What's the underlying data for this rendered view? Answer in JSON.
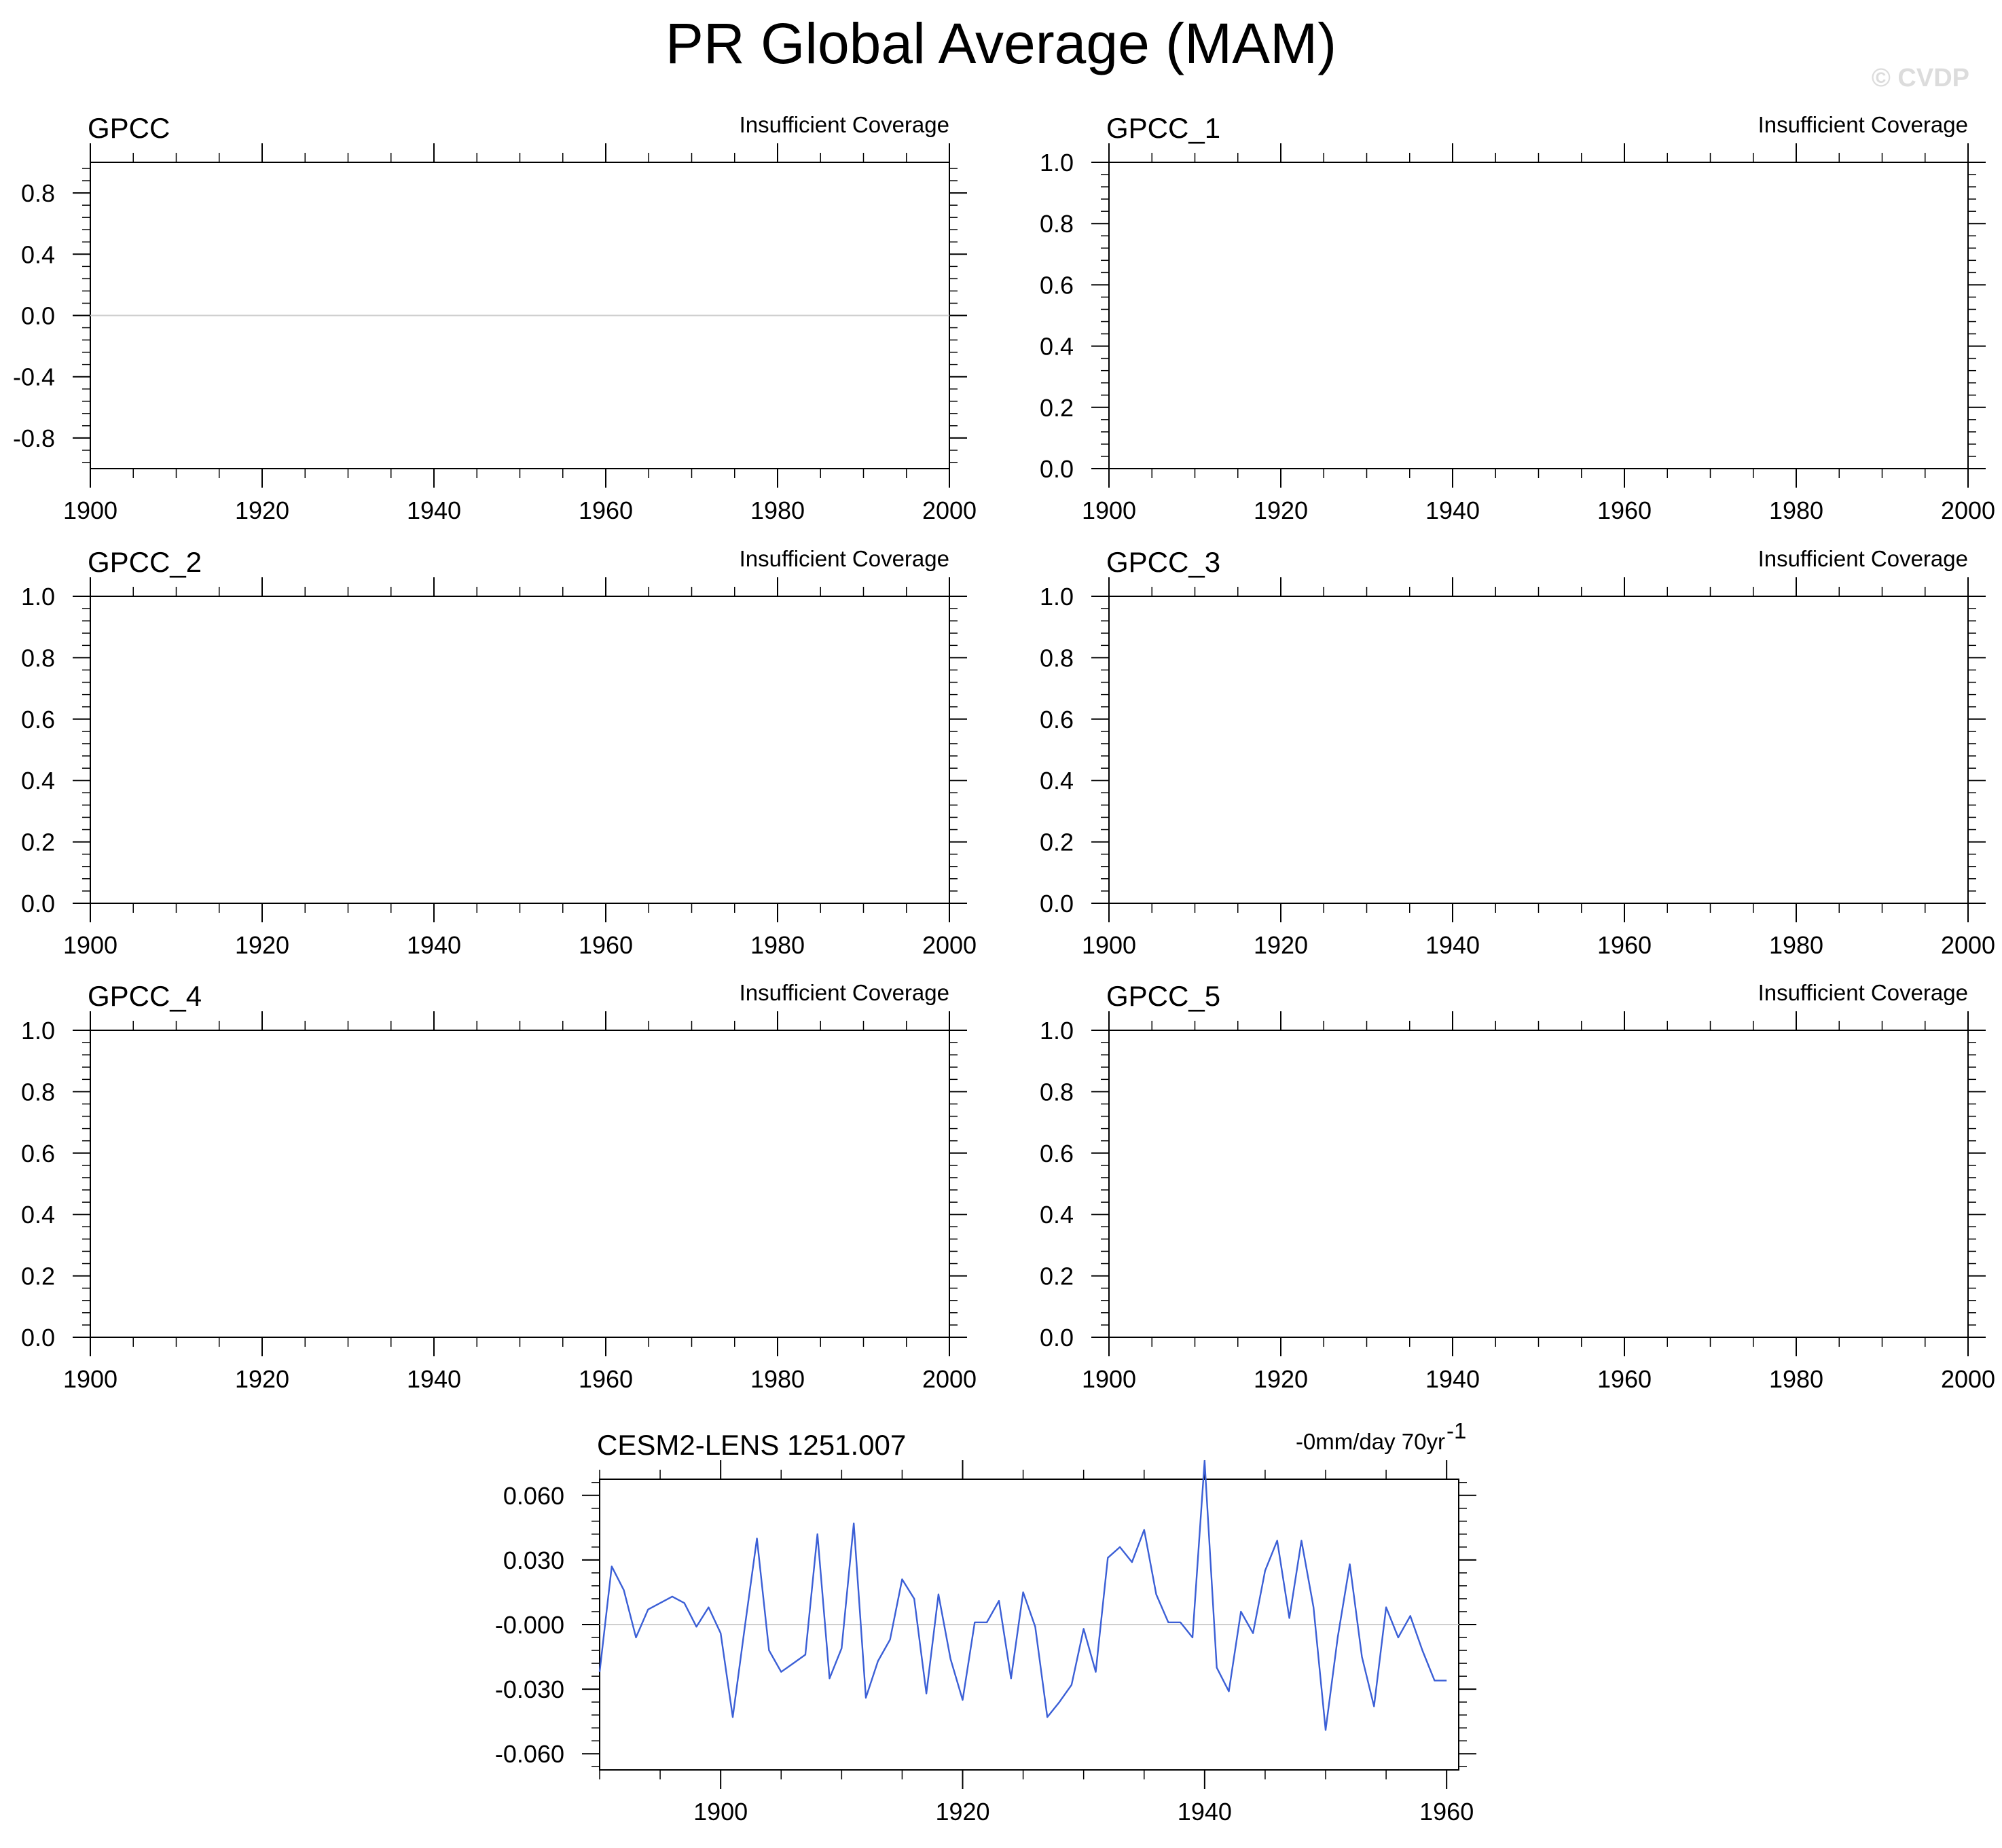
{
  "figure": {
    "title": "PR Global Average (MAM)",
    "watermark": "© CVDP"
  },
  "colors": {
    "series_line": "#3b5fd6",
    "zero_line": "#cfcfcf",
    "axis": "#000000"
  },
  "chart_data": [
    {
      "type": "line",
      "title": "GPCC",
      "note": "Insufficient Coverage",
      "xlim": [
        1900,
        2000
      ],
      "ylim": [
        -1.0,
        1.0
      ],
      "xticks": [
        1900,
        1920,
        1940,
        1960,
        1980,
        2000
      ],
      "yticks": [
        0.8,
        0.4,
        0.0,
        -0.4,
        -0.8
      ],
      "ytick_labels": [
        "0.8",
        "0.4",
        "0.0",
        "-0.4",
        "-0.8"
      ],
      "reference_line": 0.0,
      "series": []
    },
    {
      "type": "line",
      "title": "GPCC_1",
      "note": "Insufficient Coverage",
      "xlim": [
        1900,
        2000
      ],
      "ylim": [
        0.0,
        1.0
      ],
      "xticks": [
        1900,
        1920,
        1940,
        1960,
        1980,
        2000
      ],
      "yticks": [
        1.0,
        0.8,
        0.6,
        0.4,
        0.2,
        0.0
      ],
      "ytick_labels": [
        "1.0",
        "0.8",
        "0.6",
        "0.4",
        "0.2",
        "0.0"
      ],
      "series": []
    },
    {
      "type": "line",
      "title": "GPCC_2",
      "note": "Insufficient Coverage",
      "xlim": [
        1900,
        2000
      ],
      "ylim": [
        0.0,
        1.0
      ],
      "xticks": [
        1900,
        1920,
        1940,
        1960,
        1980,
        2000
      ],
      "yticks": [
        1.0,
        0.8,
        0.6,
        0.4,
        0.2,
        0.0
      ],
      "ytick_labels": [
        "1.0",
        "0.8",
        "0.6",
        "0.4",
        "0.2",
        "0.0"
      ],
      "series": []
    },
    {
      "type": "line",
      "title": "GPCC_3",
      "note": "Insufficient Coverage",
      "xlim": [
        1900,
        2000
      ],
      "ylim": [
        0.0,
        1.0
      ],
      "xticks": [
        1900,
        1920,
        1940,
        1960,
        1980,
        2000
      ],
      "yticks": [
        1.0,
        0.8,
        0.6,
        0.4,
        0.2,
        0.0
      ],
      "ytick_labels": [
        "1.0",
        "0.8",
        "0.6",
        "0.4",
        "0.2",
        "0.0"
      ],
      "series": []
    },
    {
      "type": "line",
      "title": "GPCC_4",
      "note": "Insufficient Coverage",
      "xlim": [
        1900,
        2000
      ],
      "ylim": [
        0.0,
        1.0
      ],
      "xticks": [
        1900,
        1920,
        1940,
        1960,
        1980,
        2000
      ],
      "yticks": [
        1.0,
        0.8,
        0.6,
        0.4,
        0.2,
        0.0
      ],
      "ytick_labels": [
        "1.0",
        "0.8",
        "0.6",
        "0.4",
        "0.2",
        "0.0"
      ],
      "series": []
    },
    {
      "type": "line",
      "title": "GPCC_5",
      "note": "Insufficient Coverage",
      "xlim": [
        1900,
        2000
      ],
      "ylim": [
        0.0,
        1.0
      ],
      "xticks": [
        1900,
        1920,
        1940,
        1960,
        1980,
        2000
      ],
      "yticks": [
        1.0,
        0.8,
        0.6,
        0.4,
        0.2,
        0.0
      ],
      "ytick_labels": [
        "1.0",
        "0.8",
        "0.6",
        "0.4",
        "0.2",
        "0.0"
      ],
      "series": []
    },
    {
      "type": "line",
      "title": "CESM2-LENS 1251.007",
      "note": "-0mm/day 70yr",
      "note_superscript": "-1",
      "xlim": [
        1890,
        1961
      ],
      "ylim": [
        -0.0675,
        0.0675
      ],
      "xticks": [
        1900,
        1920,
        1940,
        1960
      ],
      "yticks": [
        0.06,
        0.03,
        0.0,
        -0.03,
        -0.06
      ],
      "ytick_labels": [
        "0.060",
        "0.030",
        "-0.000",
        "-0.030",
        "-0.060"
      ],
      "reference_line": 0.0,
      "series": [
        {
          "x": [
            1890,
            1891,
            1892,
            1893,
            1894,
            1895,
            1896,
            1897,
            1898,
            1899,
            1900,
            1901,
            1902,
            1903,
            1904,
            1905,
            1906,
            1907,
            1908,
            1909,
            1910,
            1911,
            1912,
            1913,
            1914,
            1915,
            1916,
            1917,
            1918,
            1919,
            1920,
            1921,
            1922,
            1923,
            1924,
            1925,
            1926,
            1927,
            1928,
            1929,
            1930,
            1931,
            1932,
            1933,
            1934,
            1935,
            1936,
            1937,
            1938,
            1939,
            1940,
            1941,
            1942,
            1943,
            1944,
            1945,
            1946,
            1947,
            1948,
            1949,
            1950,
            1951,
            1952,
            1953,
            1954,
            1955,
            1956,
            1957,
            1958,
            1959,
            1960
          ],
          "values": [
            -0.022,
            0.027,
            0.016,
            -0.006,
            0.007,
            0.01,
            0.013,
            0.01,
            -0.001,
            0.008,
            -0.004,
            -0.043,
            -0.001,
            0.04,
            -0.012,
            -0.022,
            -0.018,
            -0.014,
            0.042,
            -0.025,
            -0.011,
            0.047,
            -0.034,
            -0.017,
            -0.007,
            0.021,
            0.012,
            -0.032,
            0.014,
            -0.016,
            -0.035,
            0.001,
            0.001,
            0.011,
            -0.025,
            0.015,
            -0.001,
            -0.043,
            -0.036,
            -0.028,
            -0.002,
            -0.022,
            0.031,
            0.036,
            0.029,
            0.044,
            0.014,
            0.001,
            0.001,
            -0.006,
            0.076,
            -0.02,
            -0.031,
            0.006,
            -0.004,
            0.025,
            0.039,
            0.003,
            0.039,
            0.008,
            -0.049,
            -0.006,
            0.028,
            -0.015,
            -0.038,
            0.008,
            -0.006,
            0.004,
            -0.012,
            -0.026,
            -0.026
          ]
        }
      ]
    }
  ]
}
